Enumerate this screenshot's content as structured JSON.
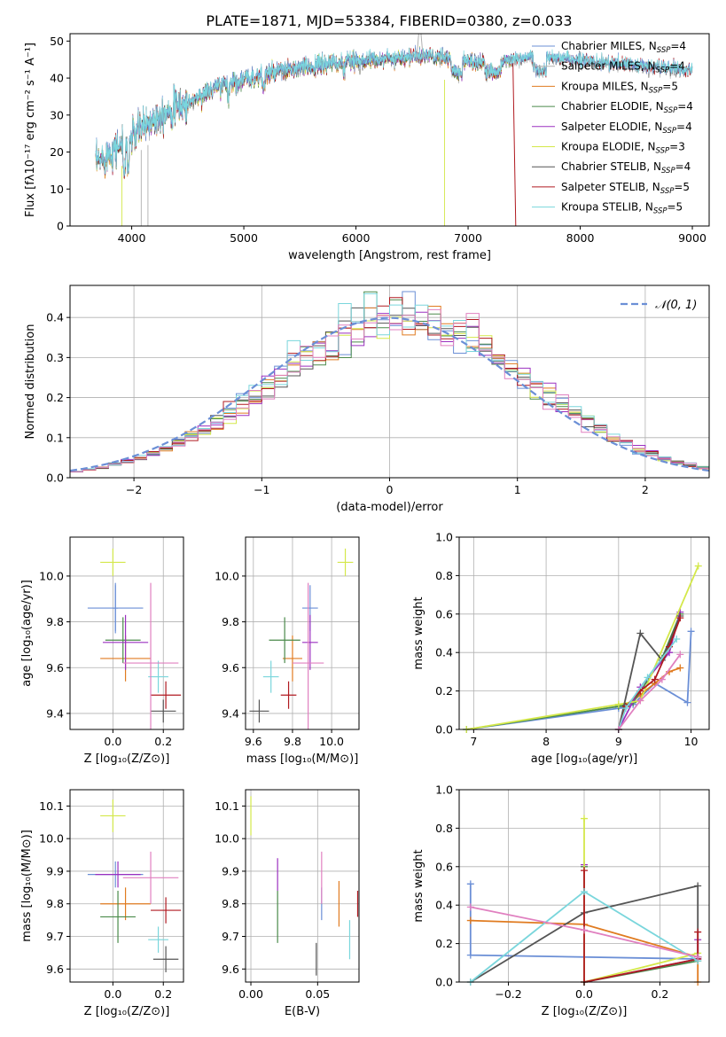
{
  "figure": {
    "title": "PLATE=1871, MJD=53384, FIBERID=0380, z=0.033"
  },
  "colors": {
    "c1": "#6b8fd6",
    "c2": "#b0b0b0",
    "c3": "#e07b20",
    "c4": "#4a8a4a",
    "c5": "#9b30c0",
    "c6": "#d4e84a",
    "c7": "#555555",
    "c8": "#b01a20",
    "c9": "#7ad6dc",
    "pink": "#e080c0"
  },
  "chart_data": [
    {
      "id": "spectrum",
      "type": "line",
      "xlabel": "wavelength [Angstrom, rest frame]",
      "ylabel": "Flux [fλ10⁻¹⁷ erg cm⁻² s⁻¹ A⁻¹]",
      "xlim": [
        3450,
        9150
      ],
      "ylim": [
        0,
        52
      ],
      "xticks": [
        "4000",
        "5000",
        "6000",
        "7000",
        "8000",
        "9000"
      ],
      "yticks": [
        "0",
        "10",
        "20",
        "30",
        "40",
        "50"
      ],
      "grid": false,
      "legend_position": "upper right",
      "legend": [
        {
          "name": "Chabrier MILES, N",
          "sub": "SSP",
          "tail": "=4",
          "color": "c1"
        },
        {
          "name": "Salpeter MILES, N",
          "sub": "SSP",
          "tail": "=4",
          "color": "c2"
        },
        {
          "name": "Kroupa MILES, N",
          "sub": "SSP",
          "tail": "=5",
          "color": "c3"
        },
        {
          "name": "Chabrier ELODIE, N",
          "sub": "SSP",
          "tail": "=4",
          "color": "c4"
        },
        {
          "name": "Salpeter ELODIE, N",
          "sub": "SSP",
          "tail": "=4",
          "color": "c5"
        },
        {
          "name": "Kroupa ELODIE, N",
          "sub": "SSP",
          "tail": "=3",
          "color": "c6"
        },
        {
          "name": "Chabrier STELIB, N",
          "sub": "SSP",
          "tail": "=4",
          "color": "c7"
        },
        {
          "name": "Salpeter STELIB, N",
          "sub": "SSP",
          "tail": "=5",
          "color": "c8"
        },
        {
          "name": "Kroupa STELIB, N",
          "sub": "SSP",
          "tail": "=5",
          "color": "c9"
        }
      ],
      "continuum": {
        "x": [
          3700,
          3800,
          3900,
          4000,
          4100,
          4200,
          4300,
          4400,
          4500,
          4600,
          4800,
          5000,
          5200,
          5400,
          5600,
          5800,
          6000,
          6200,
          6400,
          6600,
          6800,
          7000,
          7200,
          7400,
          7600,
          7800,
          8000,
          8200,
          8400,
          8600,
          8800,
          9000
        ],
        "y": [
          17,
          20,
          22,
          24,
          27,
          29,
          31,
          32,
          33,
          35,
          38,
          39.5,
          41,
          42,
          43,
          44,
          44.5,
          45,
          45.5,
          46,
          45.5,
          44.5,
          44,
          45,
          46,
          45,
          44.5,
          44,
          43.5,
          43,
          42.5,
          42
        ]
      }
    },
    {
      "id": "residuals",
      "type": "histogram",
      "xlabel": "(data-model)/error",
      "ylabel": "Normed distribution",
      "xlim": [
        -2.5,
        2.5
      ],
      "ylim": [
        0,
        0.48
      ],
      "xticks": [
        "−2",
        "−1",
        "0",
        "1",
        "2"
      ],
      "yticks": [
        "0.0",
        "0.1",
        "0.2",
        "0.3",
        "0.4"
      ],
      "grid": true,
      "legend_position": "upper right",
      "legend": [
        {
          "name": "𝒩(0, 1)",
          "color": "c1",
          "style": "dashed"
        }
      ],
      "bin_width": 0.1
    },
    {
      "id": "z-age",
      "type": "scatter",
      "xlabel": "Z [log₁₀(Z/Z⊙)]",
      "ylabel": "age  [log₁₀(age/yr)]",
      "xlim": [
        -0.17,
        0.28
      ],
      "ylim": [
        9.33,
        10.17
      ],
      "xticks": [
        "0.0",
        "0.2"
      ],
      "yticks": [
        "9.4",
        "9.6",
        "9.8",
        "10.0"
      ],
      "grid": true,
      "points": [
        {
          "color": "c1",
          "x": 0.01,
          "y": 9.86,
          "xerr": 0.11,
          "yerr": 0.1
        },
        {
          "color": "c1",
          "x": 0.01,
          "y": 9.86,
          "xerr": 0.01,
          "yerr": 0.11
        },
        {
          "color": "c3",
          "x": 0.05,
          "y": 9.64,
          "xerr": 0.1,
          "yerr": 0.1
        },
        {
          "color": "c4",
          "x": 0.04,
          "y": 9.72,
          "xerr": 0.07,
          "yerr": 0.1
        },
        {
          "color": "c5",
          "x": 0.05,
          "y": 9.71,
          "xerr": 0.09,
          "yerr": 0.12
        },
        {
          "color": "c6",
          "x": 0.0,
          "y": 10.06,
          "xerr": 0.05,
          "yerr": 0.06
        },
        {
          "color": "c7",
          "x": 0.2,
          "y": 9.41,
          "xerr": 0.05,
          "yerr": 0.05
        },
        {
          "color": "c8",
          "x": 0.21,
          "y": 9.48,
          "xerr": 0.06,
          "yerr": 0.06
        },
        {
          "color": "c9",
          "x": 0.18,
          "y": 9.56,
          "xerr": 0.04,
          "yerr": 0.07
        },
        {
          "color": "pink",
          "x": 0.15,
          "y": 9.62,
          "xerr": 0.11,
          "yerr": 0.35
        }
      ]
    },
    {
      "id": "mass-age",
      "type": "scatter",
      "xlabel": "mass [log₁₀(M/M⊙)]",
      "ylabel": "",
      "xlim": [
        9.56,
        10.14
      ],
      "ylim": [
        9.33,
        10.17
      ],
      "xticks": [
        "9.6",
        "9.8",
        "10.0"
      ],
      "yticks": [
        "9.4",
        "9.6",
        "9.8",
        "10.0"
      ],
      "grid": true,
      "points": [
        {
          "color": "c1",
          "x": 9.89,
          "y": 9.86,
          "xerr": 0.04,
          "yerr": 0.1
        },
        {
          "color": "c3",
          "x": 9.8,
          "y": 9.64,
          "xerr": 0.05,
          "yerr": 0.1
        },
        {
          "color": "c4",
          "x": 9.76,
          "y": 9.72,
          "xerr": 0.08,
          "yerr": 0.1
        },
        {
          "color": "c5",
          "x": 9.89,
          "y": 9.71,
          "xerr": 0.04,
          "yerr": 0.12
        },
        {
          "color": "c6",
          "x": 10.07,
          "y": 10.06,
          "xerr": 0.04,
          "yerr": 0.06
        },
        {
          "color": "c7",
          "x": 9.63,
          "y": 9.41,
          "xerr": 0.05,
          "yerr": 0.05
        },
        {
          "color": "c8",
          "x": 9.78,
          "y": 9.48,
          "xerr": 0.04,
          "yerr": 0.06
        },
        {
          "color": "c9",
          "x": 9.69,
          "y": 9.56,
          "xerr": 0.04,
          "yerr": 0.07
        },
        {
          "color": "pink",
          "x": 9.88,
          "y": 9.62,
          "xerr": 0.08,
          "yerr": 0.35
        }
      ]
    },
    {
      "id": "age-weight",
      "type": "line",
      "xlabel": "age  [log₁₀(age/yr)]",
      "ylabel": "mass weight",
      "xlim": [
        6.8,
        10.25
      ],
      "ylim": [
        0,
        1
      ],
      "xticks": [
        "7",
        "8",
        "9",
        "10"
      ],
      "yticks": [
        "0.0",
        "0.2",
        "0.4",
        "0.6",
        "0.8",
        "1.0"
      ],
      "grid": true,
      "series": [
        {
          "color": "c1",
          "x": [
            6.9,
            9.0,
            9.2,
            9.5,
            9.95,
            10.0
          ],
          "y": [
            0.0,
            0.11,
            0.13,
            0.24,
            0.14,
            0.51
          ]
        },
        {
          "color": "c3",
          "x": [
            9.0,
            9.1,
            9.3,
            9.5,
            9.7,
            9.85
          ],
          "y": [
            0.0,
            0.12,
            0.18,
            0.24,
            0.3,
            0.32
          ]
        },
        {
          "color": "c4",
          "x": [
            6.9,
            9.0,
            9.2,
            9.6,
            9.85
          ],
          "y": [
            0.0,
            0.12,
            0.14,
            0.37,
            0.6
          ]
        },
        {
          "color": "c5",
          "x": [
            9.0,
            9.3,
            9.7,
            9.85
          ],
          "y": [
            0.0,
            0.22,
            0.4,
            0.61
          ]
        },
        {
          "color": "c6",
          "x": [
            6.9,
            9.0,
            9.3,
            10.1
          ],
          "y": [
            0.0,
            0.13,
            0.15,
            0.85
          ]
        },
        {
          "color": "c7",
          "x": [
            9.0,
            9.3,
            9.6,
            9.85
          ],
          "y": [
            0.0,
            0.5,
            0.36,
            0.59
          ]
        },
        {
          "color": "c8",
          "x": [
            9.0,
            9.1,
            9.3,
            9.5,
            9.7,
            9.85
          ],
          "y": [
            0.0,
            0.12,
            0.2,
            0.26,
            0.43,
            0.58
          ]
        },
        {
          "color": "c9",
          "x": [
            9.0,
            9.1,
            9.4,
            9.8
          ],
          "y": [
            0.0,
            0.11,
            0.27,
            0.47
          ]
        },
        {
          "color": "pink",
          "x": [
            9.0,
            9.3,
            9.6,
            9.85
          ],
          "y": [
            0.0,
            0.15,
            0.26,
            0.39
          ]
        }
      ]
    },
    {
      "id": "z-mass",
      "type": "scatter",
      "xlabel": "Z [log₁₀(Z/Z⊙)]",
      "ylabel": "mass [log₁₀(M/M⊙)]",
      "xlim": [
        -0.17,
        0.28
      ],
      "ylim": [
        9.56,
        10.15
      ],
      "xticks": [
        "0.0",
        "0.2"
      ],
      "yticks": [
        "9.6",
        "9.7",
        "9.8",
        "9.9",
        "10.0",
        "10.1"
      ],
      "grid": true,
      "points": [
        {
          "color": "c1",
          "x": 0.01,
          "y": 9.89,
          "xerr": 0.11,
          "yerr": 0.04
        },
        {
          "color": "c3",
          "x": 0.05,
          "y": 9.8,
          "xerr": 0.1,
          "yerr": 0.05
        },
        {
          "color": "c4",
          "x": 0.02,
          "y": 9.76,
          "xerr": 0.07,
          "yerr": 0.08
        },
        {
          "color": "c5",
          "x": 0.02,
          "y": 9.89,
          "xerr": 0.09,
          "yerr": 0.04
        },
        {
          "color": "c6",
          "x": 0.0,
          "y": 10.07,
          "xerr": 0.05,
          "yerr": 0.05
        },
        {
          "color": "c7",
          "x": 0.21,
          "y": 9.63,
          "xerr": 0.05,
          "yerr": 0.04
        },
        {
          "color": "c8",
          "x": 0.21,
          "y": 9.78,
          "xerr": 0.06,
          "yerr": 0.04
        },
        {
          "color": "c9",
          "x": 0.18,
          "y": 9.69,
          "xerr": 0.04,
          "yerr": 0.04
        },
        {
          "color": "pink",
          "x": 0.15,
          "y": 9.88,
          "xerr": 0.11,
          "yerr": 0.08
        }
      ]
    },
    {
      "id": "ebv-mass",
      "type": "scatter",
      "xlabel": "E(B-V)",
      "ylabel": "",
      "xlim": [
        -0.004,
        0.081
      ],
      "ylim": [
        9.56,
        10.15
      ],
      "xticks": [
        "0.00",
        "0.05"
      ],
      "yticks": [
        "9.6",
        "9.7",
        "9.8",
        "9.9",
        "10.0",
        "10.1"
      ],
      "grid": true,
      "points": [
        {
          "color": "c1",
          "x": 0.053,
          "y": 9.8,
          "xerr": 0,
          "yerr": 0.05
        },
        {
          "color": "c3",
          "x": 0.066,
          "y": 9.8,
          "xerr": 0,
          "yerr": 0.07
        },
        {
          "color": "c4",
          "x": 0.02,
          "y": 9.76,
          "xerr": 0,
          "yerr": 0.08
        },
        {
          "color": "c5",
          "x": 0.02,
          "y": 9.89,
          "xerr": 0,
          "yerr": 0.05
        },
        {
          "color": "c6",
          "x": 0.0,
          "y": 10.07,
          "xerr": 0,
          "yerr": 0.06
        },
        {
          "color": "c7",
          "x": 0.049,
          "y": 9.63,
          "xerr": 0,
          "yerr": 0.05
        },
        {
          "color": "c8",
          "x": 0.08,
          "y": 9.8,
          "xerr": 0,
          "yerr": 0.04
        },
        {
          "color": "c9",
          "x": 0.074,
          "y": 9.69,
          "xerr": 0,
          "yerr": 0.06
        },
        {
          "color": "pink",
          "x": 0.053,
          "y": 9.88,
          "xerr": 0,
          "yerr": 0.08
        }
      ]
    },
    {
      "id": "z-weight",
      "type": "line",
      "xlabel": "Z [log₁₀(Z/Z⊙)]",
      "ylabel": "mass weight",
      "xlim": [
        -0.33,
        0.33
      ],
      "ylim": [
        0,
        1
      ],
      "xticks": [
        "−0.2",
        "0.0",
        "0.2"
      ],
      "yticks": [
        "0.0",
        "0.2",
        "0.4",
        "0.6",
        "0.8",
        "1.0"
      ],
      "grid": true,
      "series": [
        {
          "color": "c1",
          "x": [
            -0.3,
            -0.3,
            0.3,
            0.3
          ],
          "y": [
            0.51,
            0.14,
            0.12,
            0.13
          ]
        },
        {
          "color": "c3",
          "x": [
            -0.3,
            0.0,
            0.3,
            0.3
          ],
          "y": [
            0.32,
            0.3,
            0.13,
            0.0
          ]
        },
        {
          "color": "c4",
          "x": [
            0.0,
            0.0,
            0.3,
            0.3
          ],
          "y": [
            0.6,
            0.0,
            0.11,
            0.13
          ]
        },
        {
          "color": "c5",
          "x": [
            0.0,
            0.0,
            0.3,
            0.3
          ],
          "y": [
            0.61,
            0.0,
            0.12,
            0.22
          ]
        },
        {
          "color": "c6",
          "x": [
            0.0,
            0.0,
            0.3
          ],
          "y": [
            0.85,
            0.0,
            0.15
          ]
        },
        {
          "color": "c7",
          "x": [
            -0.3,
            0.0,
            0.3,
            0.3
          ],
          "y": [
            0.0,
            0.36,
            0.5,
            0.13
          ]
        },
        {
          "color": "c8",
          "x": [
            0.0,
            0.0,
            0.3,
            0.3
          ],
          "y": [
            0.58,
            0.0,
            0.12,
            0.26
          ]
        },
        {
          "color": "c9",
          "x": [
            -0.3,
            0.0,
            0.3
          ],
          "y": [
            0.0,
            0.47,
            0.11
          ]
        },
        {
          "color": "pink",
          "x": [
            -0.3,
            0.0,
            0.3
          ],
          "y": [
            0.39,
            0.27,
            0.13
          ]
        }
      ]
    }
  ]
}
